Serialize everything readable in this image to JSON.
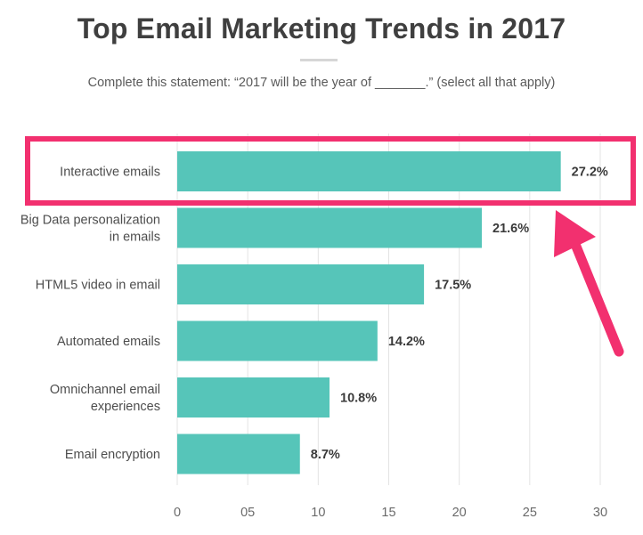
{
  "header": {
    "title": "Top Email Marketing Trends in 2017",
    "subtitle": "Complete this statement: “2017 will be the year of _______.” (select all that apply)"
  },
  "chart_data": {
    "type": "bar",
    "orientation": "horizontal",
    "title": "Top Email Marketing Trends in 2017",
    "subtitle": "Complete this statement: “2017 will be the year of _______.” (select all that apply)",
    "categories": [
      [
        "Interactive emails"
      ],
      [
        "Big Data personalization",
        "in emails"
      ],
      [
        "HTML5 video in email"
      ],
      [
        "Automated emails"
      ],
      [
        "Omnichannel email",
        "experiences"
      ],
      [
        "Email encryption"
      ]
    ],
    "values": [
      27.2,
      21.6,
      17.5,
      14.2,
      10.8,
      8.7
    ],
    "value_labels": [
      "27.2%",
      "21.6%",
      "17.5%",
      "14.2%",
      "10.8%",
      "8.7%"
    ],
    "xlim": [
      0,
      30
    ],
    "xticks": [
      0,
      5,
      10,
      15,
      20,
      25,
      30
    ],
    "xtick_labels": [
      "0",
      "05",
      "10",
      "15",
      "20",
      "25",
      "30"
    ],
    "grid": true,
    "bar_color": "#56c5b9",
    "highlight": {
      "category_index": 0,
      "color": "#f2306f"
    }
  }
}
